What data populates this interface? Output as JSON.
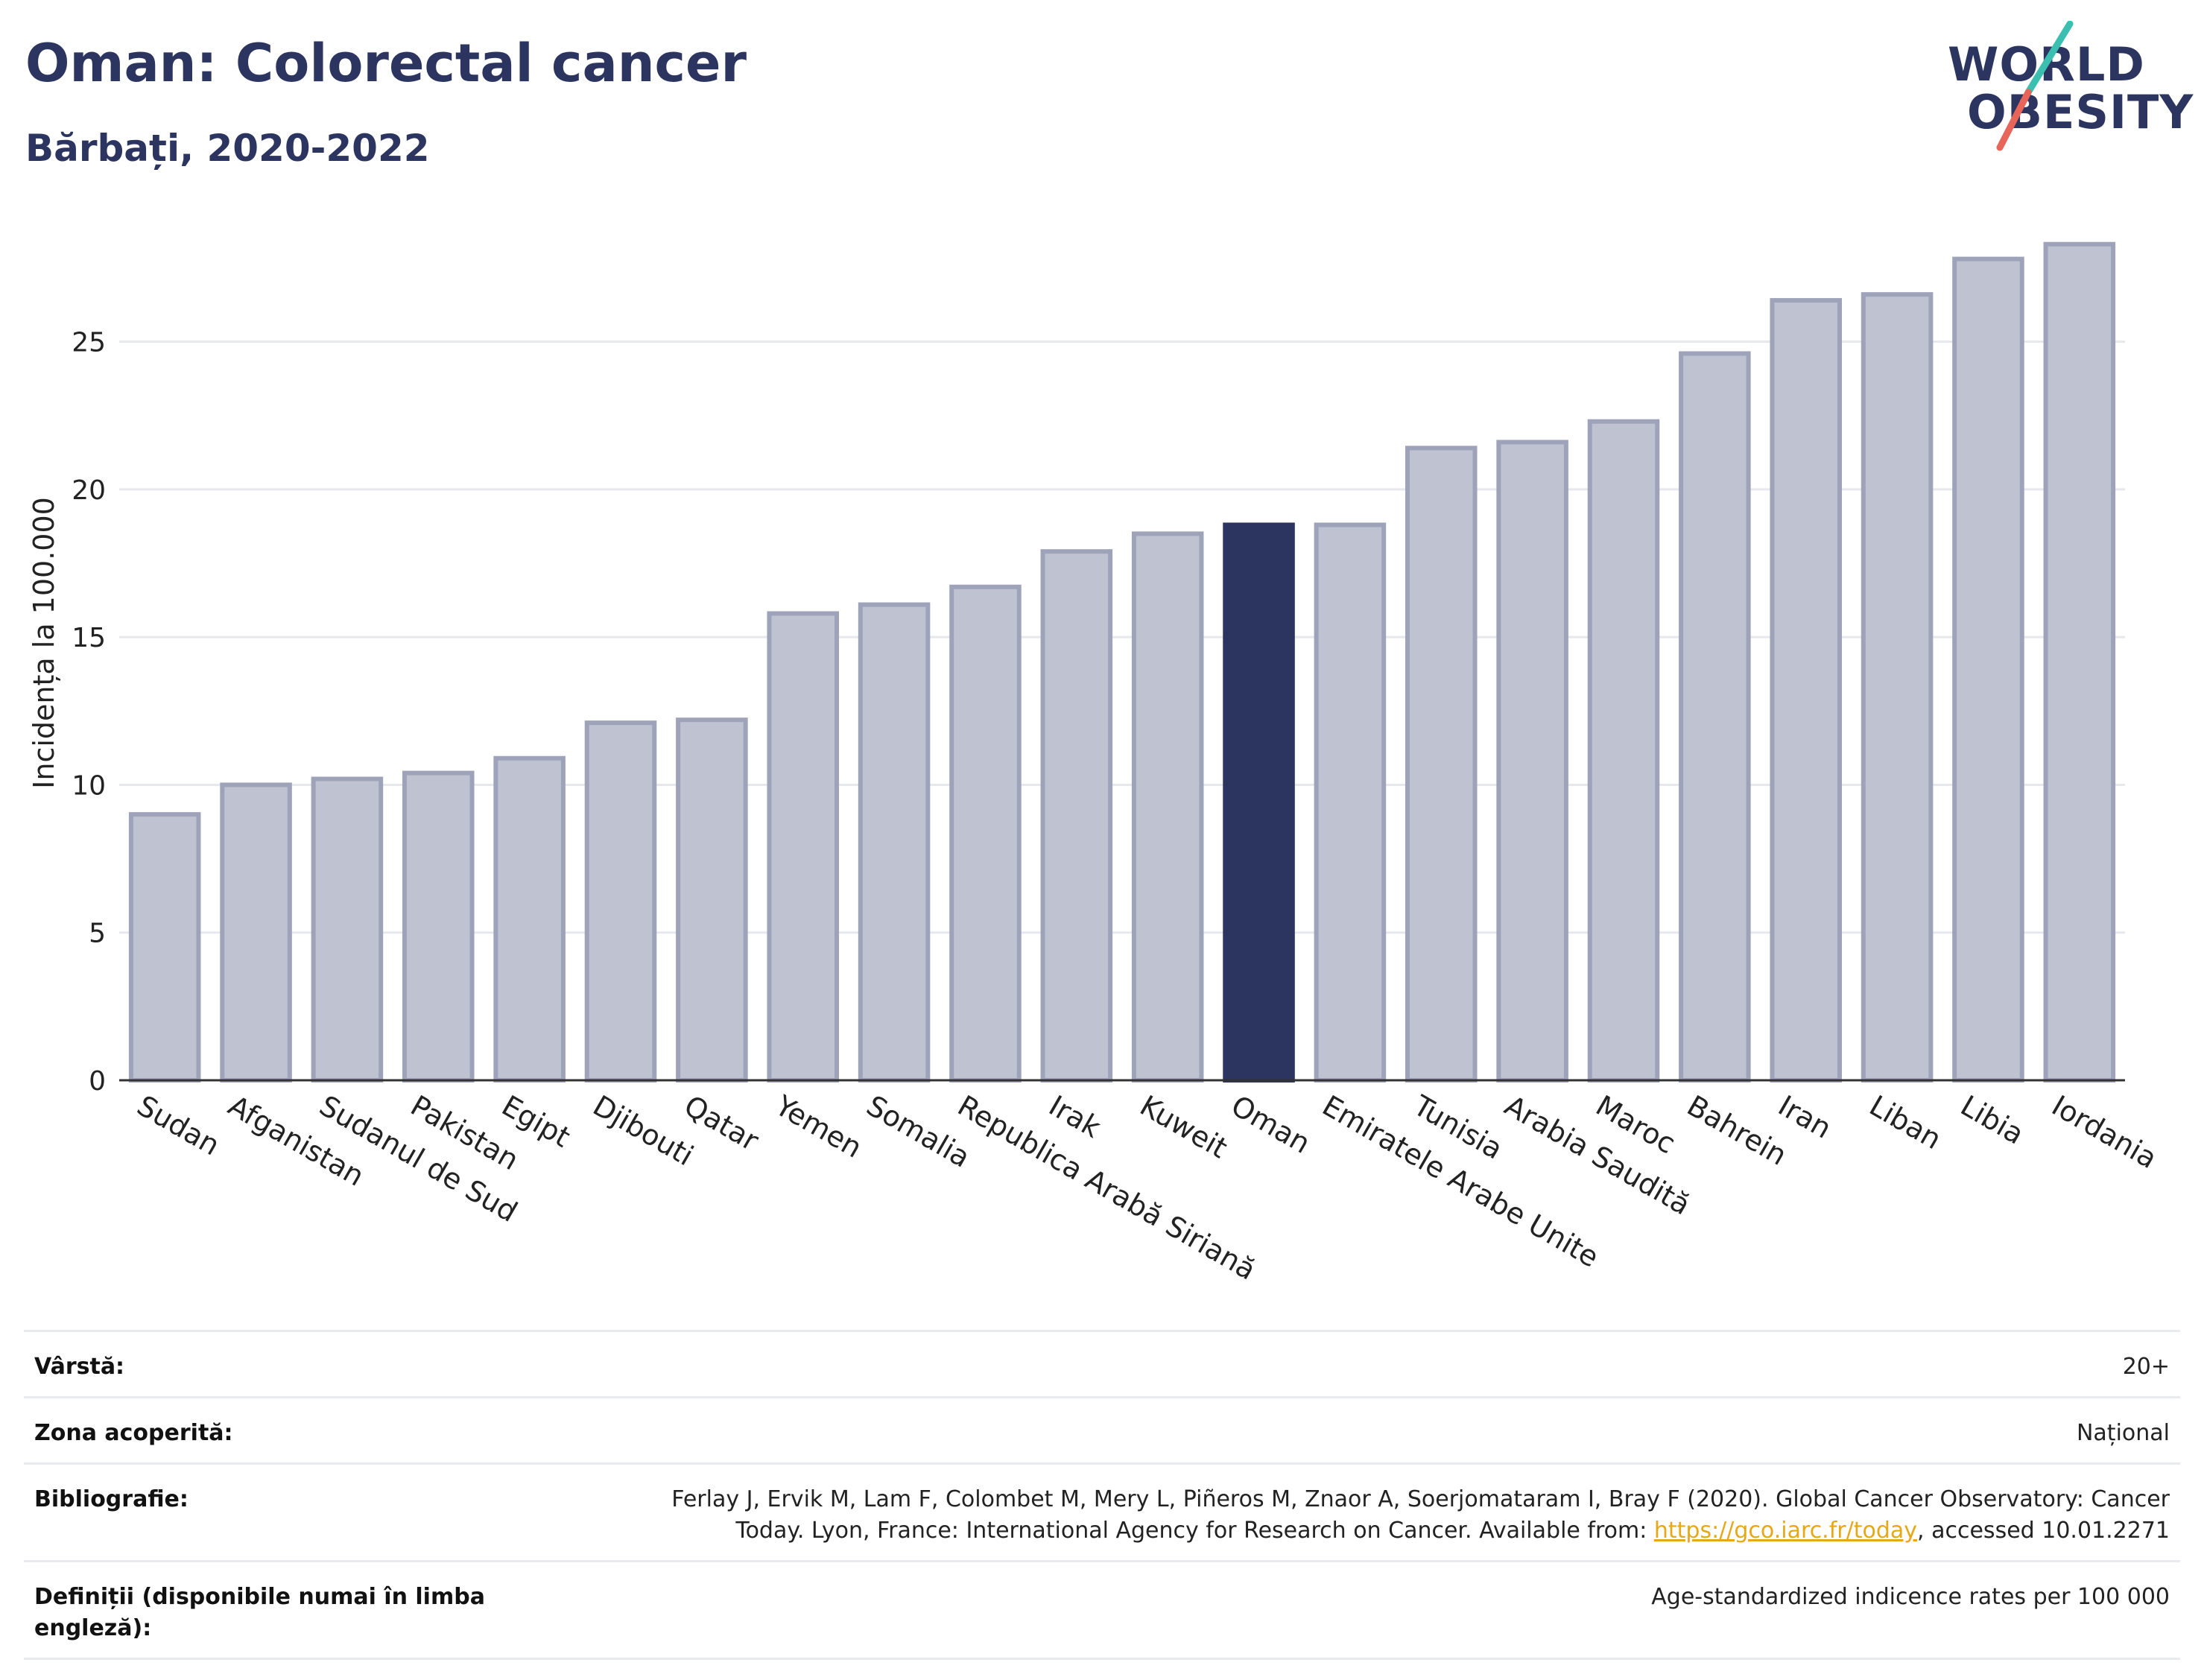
{
  "header": {
    "title": "Oman: Colorectal cancer",
    "subtitle": "Bărbați, 2020-2022"
  },
  "logo": {
    "line1": "WORLD",
    "line2": "OBESITY",
    "colors": {
      "text": "#2b3560",
      "slash_top": "#3bbfb0",
      "slash_bottom": "#e8655a"
    }
  },
  "chart_data": {
    "type": "bar",
    "ylabel": "Incidența la 100.000",
    "xlabel": "",
    "ylim": [
      0,
      29
    ],
    "yticks": [
      0,
      5,
      10,
      15,
      20,
      25
    ],
    "grid": true,
    "highlight": "Oman",
    "colors": {
      "bar": "#bfc2d0",
      "bar_stroke": "#9ea3ba",
      "highlight": "#2b3560",
      "grid": "#e6e8ee",
      "axis": "#333333"
    },
    "categories": [
      "Sudan",
      "Afganistan",
      "Sudanul de Sud",
      "Pakistan",
      "Egipt",
      "Djibouti",
      "Qatar",
      "Yemen",
      "Somalia",
      "Republica Arabă Siriană",
      "Irak",
      "Kuweit",
      "Oman",
      "Emiratele Arabe Unite",
      "Tunisia",
      "Arabia Saudită",
      "Maroc",
      "Bahrein",
      "Iran",
      "Liban",
      "Libia",
      "Iordania"
    ],
    "values": [
      9.0,
      10.0,
      10.2,
      10.4,
      10.9,
      12.1,
      12.2,
      15.8,
      16.1,
      16.7,
      17.9,
      18.5,
      18.8,
      18.8,
      21.4,
      21.6,
      22.3,
      24.6,
      26.4,
      26.6,
      27.8,
      28.3
    ]
  },
  "info": {
    "rows": [
      {
        "key": "Vârstă:",
        "value": "20+"
      },
      {
        "key": "Zona acoperită:",
        "value": "Național"
      },
      {
        "key": "Bibliografie:",
        "value_line1": "Ferlay J, Ervik M, Lam F, Colombet M, Mery L, Piñeros M, Znaor A, Soerjomataram I, Bray F (2020). Global Cancer Observatory: Cancer",
        "value_line2_pre": "Today. Lyon, France: International Agency for Research on Cancer. Available from: ",
        "link": "https://gco.iarc.fr/today",
        "value_line2_post": ", accessed 10.01.2271"
      },
      {
        "key": "Definiții (disponibile numai în limba engleză):",
        "value": "Age-standardized indicence rates per 100 000"
      }
    ]
  }
}
